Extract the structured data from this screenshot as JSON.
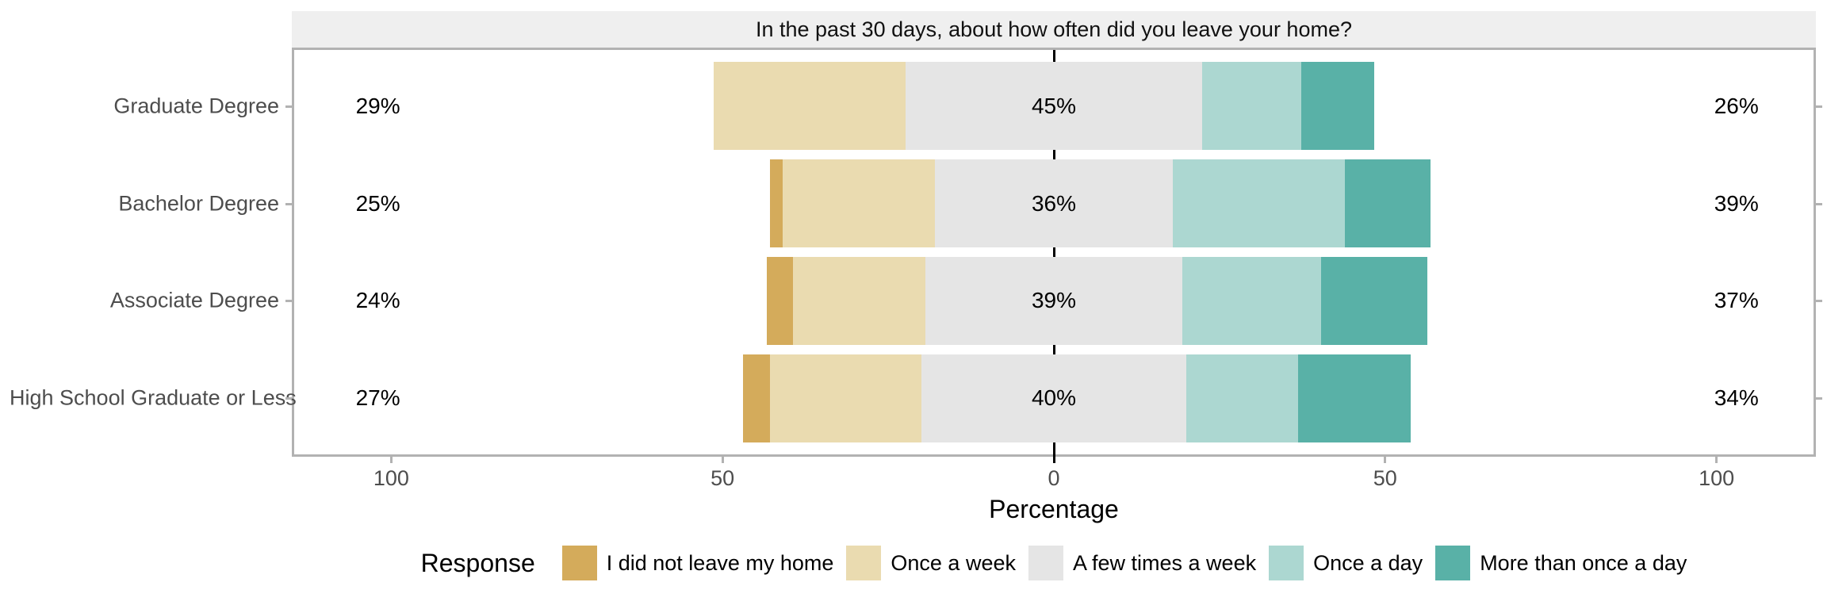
{
  "chart_data": {
    "type": "diverging_stacked_bar",
    "title": "In the past 30 days, about how often did you leave your home?",
    "xlabel": "Percentage",
    "legend_title": "Response",
    "legend_position": "bottom",
    "orientation": "horizontal",
    "categories": [
      "Graduate Degree",
      "Bachelor Degree",
      "Associate Degree",
      "High School Graduate or Less"
    ],
    "series": [
      {
        "name": "I did not leave my home",
        "color": "#D4AB5B",
        "side": "negative",
        "values": [
          0,
          2,
          4,
          4
        ]
      },
      {
        "name": "Once a week",
        "color": "#EADBB0",
        "side": "negative",
        "values": [
          29,
          23,
          20,
          23
        ]
      },
      {
        "name": "A few times a week",
        "color": "#E5E5E5",
        "side": "neutral-centered-on-zero",
        "values": [
          45,
          36,
          39,
          40
        ]
      },
      {
        "name": "Once a day",
        "color": "#ACD7D1",
        "side": "positive",
        "values": [
          15,
          26,
          21,
          17
        ]
      },
      {
        "name": "More than once a day",
        "color": "#59B1A7",
        "side": "positive",
        "values": [
          11,
          13,
          16,
          17
        ]
      }
    ],
    "row_totals": {
      "left": [
        "29%",
        "25%",
        "24%",
        "27%"
      ],
      "center": [
        "45%",
        "36%",
        "39%",
        "40%"
      ],
      "right": [
        "26%",
        "39%",
        "37%",
        "34%"
      ]
    },
    "label_positions": {
      "left": -102,
      "center": 0,
      "right": 103
    },
    "x_ticks": [
      {
        "value": -100,
        "label": "100"
      },
      {
        "value": -50,
        "label": "50"
      },
      {
        "value": 0,
        "label": "0"
      },
      {
        "value": 50,
        "label": "50"
      },
      {
        "value": 100,
        "label": "100"
      }
    ],
    "xlim": [
      -115,
      115
    ],
    "grid": false,
    "zero_line_color": "#000000",
    "panel_border_color": "#B2B2B2",
    "strip_background": "#EFEFEF",
    "axis_text_color": "#4D4D4D"
  }
}
